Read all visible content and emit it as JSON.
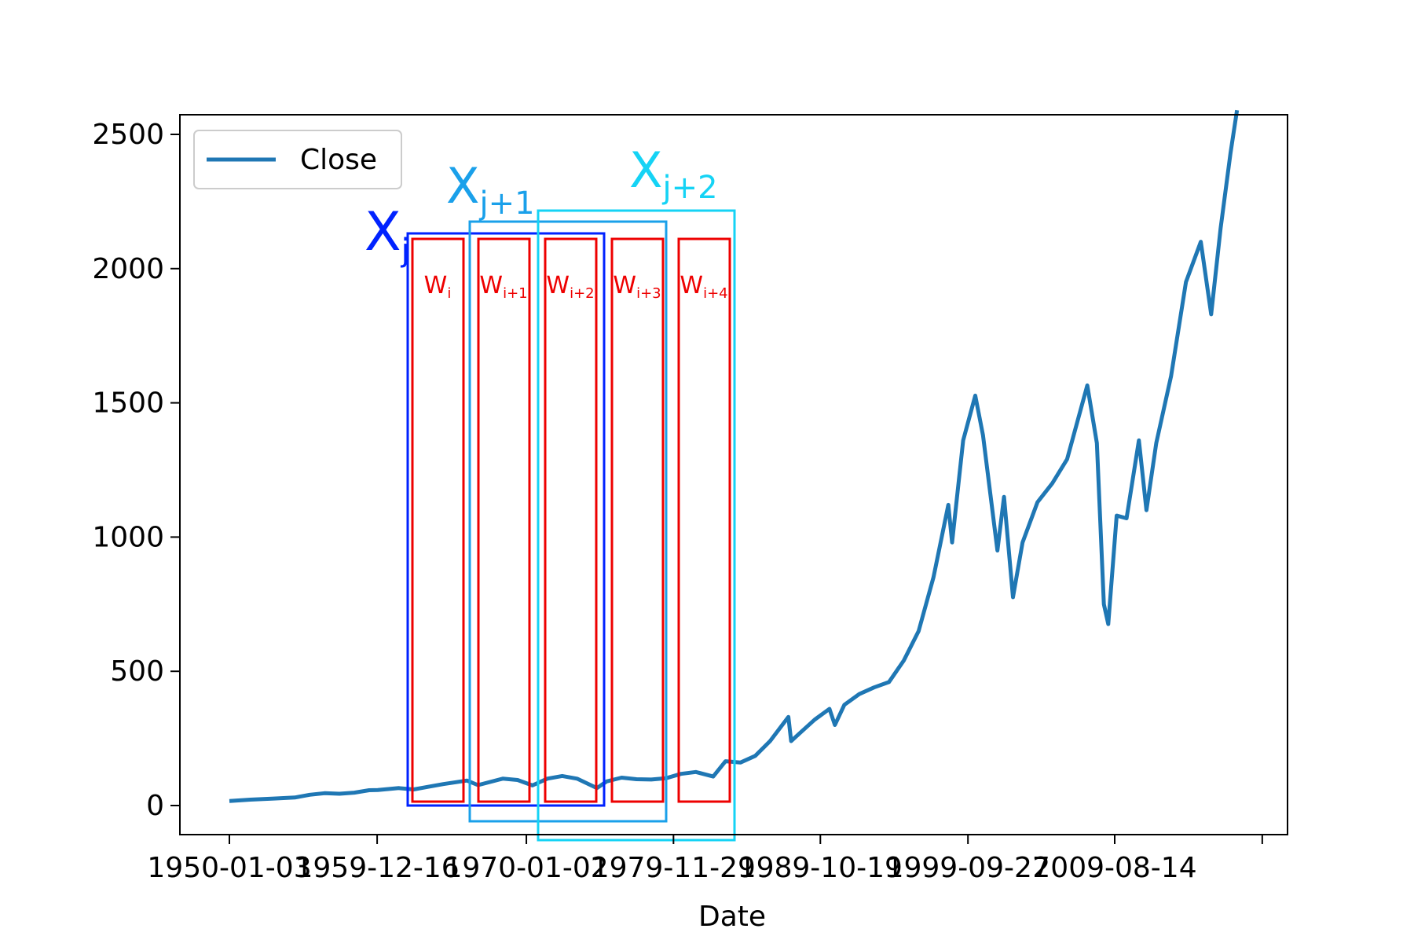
{
  "chart_data": {
    "type": "line",
    "title": "",
    "xlabel": "Date",
    "ylabel": "",
    "x_tick_labels": [
      "1950-01-03",
      "1959-12-16",
      "1970-01-02",
      "1979-11-29",
      "1989-10-19",
      "1999-09-27",
      "2009-08-14"
    ],
    "y_ticks": [
      0,
      500,
      1000,
      1500,
      2000,
      2500
    ],
    "xlim": [
      "1946-09-01",
      "2021-05-01"
    ],
    "ylim": [
      -100,
      2570
    ],
    "grid": false,
    "legend": {
      "position": "upper-left",
      "entries": [
        "Close"
      ]
    },
    "series": [
      {
        "name": "Close",
        "color": "#1f77b4",
        "x": [
          "1950-01-03",
          "1951-06-01",
          "1953-01-01",
          "1954-06-01",
          "1955-06-01",
          "1956-06-01",
          "1957-06-01",
          "1958-06-01",
          "1959-06-01",
          "1960-01-01",
          "1961-06-01",
          "1962-06-01",
          "1963-06-01",
          "1964-06-01",
          "1966-01-01",
          "1966-10-01",
          "1968-06-01",
          "1969-06-01",
          "1970-06-01",
          "1971-06-01",
          "1972-06-01",
          "1973-06-01",
          "1974-10-01",
          "1975-06-01",
          "1976-06-01",
          "1977-06-01",
          "1978-06-01",
          "1979-06-01",
          "1980-06-01",
          "1981-06-01",
          "1982-08-01",
          "1983-06-01",
          "1984-06-01",
          "1985-06-01",
          "1986-06-01",
          "1987-08-25",
          "1987-11-01",
          "1988-06-01",
          "1989-06-01",
          "1990-06-01",
          "1990-10-11",
          "1991-06-01",
          "1992-06-01",
          "1993-06-01",
          "1994-06-01",
          "1995-06-01",
          "1996-06-01",
          "1997-06-01",
          "1998-06-01",
          "1998-09-01",
          "1999-06-01",
          "2000-03-24",
          "2000-10-01",
          "2001-09-21",
          "2002-03-01",
          "2002-10-09",
          "2003-06-01",
          "2004-06-01",
          "2005-06-01",
          "2006-06-01",
          "2007-10-09",
          "2008-06-01",
          "2008-11-20",
          "2009-03-09",
          "2009-10-01",
          "2010-06-01",
          "2011-04-01",
          "2011-10-03",
          "2012-06-01",
          "2013-06-01",
          "2014-06-01",
          "2015-06-01",
          "2016-02-11",
          "2016-10-01",
          "2017-06-01",
          "2017-11-08"
        ],
        "y": [
          17,
          22,
          26,
          30,
          40,
          46,
          44,
          48,
          57,
          58,
          65,
          60,
          70,
          80,
          93,
          76,
          100,
          95,
          75,
          100,
          110,
          100,
          65,
          90,
          104,
          98,
          97,
          102,
          118,
          125,
          108,
          165,
          160,
          185,
          240,
          330,
          240,
          270,
          320,
          360,
          300,
          375,
          415,
          440,
          460,
          540,
          650,
          850,
          1120,
          980,
          1360,
          1527,
          1380,
          950,
          1150,
          776,
          980,
          1130,
          1200,
          1290,
          1565,
          1350,
          750,
          676,
          1080,
          1070,
          1360,
          1100,
          1350,
          1600,
          1950,
          2100,
          1830,
          2150,
          2430,
          2590
        ]
      }
    ],
    "annotations": {
      "x_windows": [
        {
          "label_main": "X",
          "label_sub": "j",
          "color": "#0022ff"
        },
        {
          "label_main": "X",
          "label_sub": "j+1",
          "color": "#1aa0ea"
        },
        {
          "label_main": "X",
          "label_sub": "j+2",
          "color": "#15d3f5"
        }
      ],
      "w_windows": [
        {
          "label_main": "W",
          "label_sub": "i",
          "color": "#ee0000"
        },
        {
          "label_main": "W",
          "label_sub": "i+1",
          "color": "#ee0000"
        },
        {
          "label_main": "W",
          "label_sub": "i+2",
          "color": "#ee0000"
        },
        {
          "label_main": "W",
          "label_sub": "i+3",
          "color": "#ee0000"
        },
        {
          "label_main": "W",
          "label_sub": "i+4",
          "color": "#ee0000"
        }
      ]
    }
  }
}
